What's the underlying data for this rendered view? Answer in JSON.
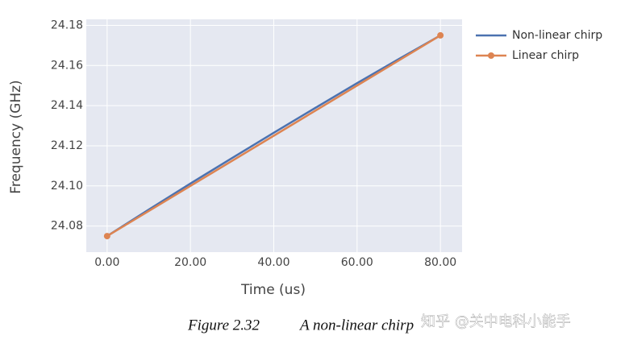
{
  "chart_data": {
    "type": "line",
    "x_label": "Time (us)",
    "y_label": "Frequency (GHz)",
    "xlim": [
      -5,
      85.2
    ],
    "ylim": [
      24.067,
      24.183
    ],
    "xticks": [
      {
        "value": 0,
        "label": "0.00"
      },
      {
        "value": 20,
        "label": "20.00"
      },
      {
        "value": 40,
        "label": "40.00"
      },
      {
        "value": 60,
        "label": "60.00"
      },
      {
        "value": 80,
        "label": "80.00"
      }
    ],
    "yticks": [
      24.08,
      {
        "value": 24.1,
        "label": "24.10"
      },
      24.12,
      24.14,
      24.16,
      24.18
    ],
    "grid": true,
    "legend": "outside-right",
    "series": [
      {
        "name": "Non-linear chirp",
        "color": "#4c72b0",
        "markers": false,
        "x": [
          0,
          10,
          20,
          30,
          40,
          50,
          60,
          70,
          80
        ],
        "values": [
          24.075,
          24.0882,
          24.1012,
          24.1139,
          24.1265,
          24.1389,
          24.1512,
          24.1632,
          24.175
        ]
      },
      {
        "name": "Linear chirp",
        "color": "#dd8452",
        "markers": true,
        "x": [
          0,
          80
        ],
        "values": [
          24.075,
          24.175
        ]
      }
    ]
  },
  "figure_number": "Figure 2.32",
  "caption": "A non-linear chirp",
  "watermark": "知乎 @关中电科小能手"
}
